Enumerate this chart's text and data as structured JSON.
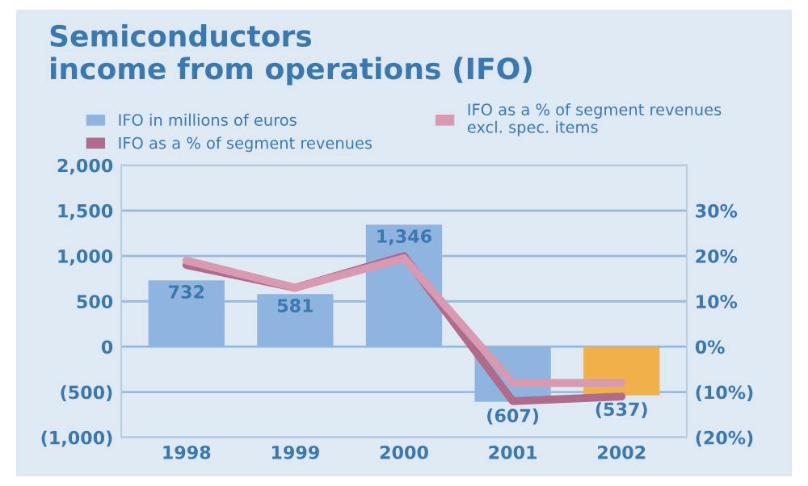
{
  "chart_data": {
    "type": "bar",
    "title": "Semiconductors\nincome from operations (IFO)",
    "categories": [
      "1998",
      "1999",
      "2000",
      "2001",
      "2002"
    ],
    "series": [
      {
        "name": "IFO in millions of euros",
        "colors": [
          "#8fb4e0",
          "#8fb4e0",
          "#8fb4e0",
          "#8fb4e0",
          "#f0b04a"
        ],
        "values": [
          732,
          581,
          1346,
          -607,
          -537
        ],
        "value_labels": [
          "732",
          "581",
          "1,346",
          "(607)",
          "(537)"
        ]
      },
      {
        "name": "IFO as a % of segment revenues",
        "type": "line",
        "axis": "y2",
        "color": "#b06a8a",
        "values": [
          18,
          13,
          20,
          -12,
          -11
        ]
      },
      {
        "name": "IFO as a % of segment revenues\nexcl. spec. items",
        "type": "line",
        "axis": "y2",
        "color": "#d89ab0",
        "values": [
          19,
          13,
          19.5,
          -8,
          -8
        ]
      }
    ],
    "ylim": [
      -1000,
      2000
    ],
    "yticks": [
      {
        "value": -1000,
        "label": "(1,000)"
      },
      {
        "value": -500,
        "label": "(500)"
      },
      0,
      {
        "value": 500,
        "label": "500"
      },
      {
        "value": 1000,
        "label": "1,000"
      },
      {
        "value": 1500,
        "label": "1,500"
      },
      {
        "value": 2000,
        "label": "2,000"
      }
    ],
    "y2lim": [
      -20,
      40
    ],
    "y2ticks": [
      {
        "value": -20,
        "label": "(20%)"
      },
      {
        "value": -10,
        "label": "(10%)"
      },
      {
        "value": 0,
        "label": "0%"
      },
      {
        "value": 10,
        "label": "10%"
      },
      {
        "value": 20,
        "label": "20%"
      },
      {
        "value": 30,
        "label": "30%"
      }
    ],
    "grid": "y",
    "legend": "top"
  }
}
